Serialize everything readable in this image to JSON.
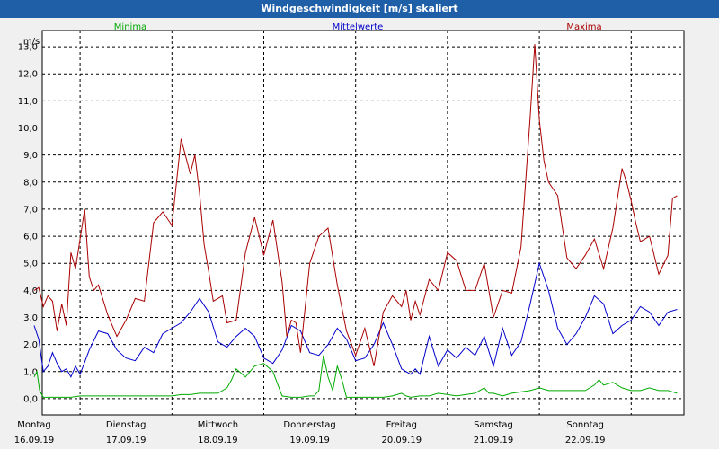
{
  "window": {
    "title": "Windgeschwindigkeit [m/s] skaliert"
  },
  "chart_data": {
    "type": "line",
    "title": "Windgeschwindigkeit [m/s] skaliert",
    "ylabel": "m/s",
    "xlabel": "",
    "ylim": [
      -0.6,
      13.6
    ],
    "xlim": [
      0,
      7
    ],
    "grid": true,
    "y_ticks": [
      "0,0",
      "1,0",
      "2,0",
      "3,0",
      "4,0",
      "5,0",
      "6,0",
      "7,0",
      "8,0",
      "9,0",
      "10,0",
      "11,0",
      "12,0",
      "13,0"
    ],
    "x_ticks": [
      {
        "day": "Montag",
        "date": "16.09.19"
      },
      {
        "day": "Dienstag",
        "date": "17.09.19"
      },
      {
        "day": "Mittwoch",
        "date": "18.09.19"
      },
      {
        "day": "Donnerstag",
        "date": "19.09.19"
      },
      {
        "day": "Freitag",
        "date": "20.09.19"
      },
      {
        "day": "Samstag",
        "date": "21.09.19"
      },
      {
        "day": "Sonntag",
        "date": "22.09.19"
      }
    ],
    "series": [
      {
        "name": "Minima",
        "color": "#00aa00",
        "x": [
          0,
          0.03,
          0.06,
          0.1,
          0.2,
          0.4,
          0.5,
          0.6,
          0.8,
          1.0,
          1.2,
          1.4,
          1.5,
          1.6,
          1.7,
          1.8,
          1.9,
          2.0,
          2.1,
          2.15,
          2.2,
          2.3,
          2.4,
          2.5,
          2.6,
          2.7,
          2.8,
          2.9,
          3.0,
          3.05,
          3.1,
          3.15,
          3.2,
          3.25,
          3.3,
          3.35,
          3.4,
          3.5,
          3.6,
          3.8,
          3.9,
          4.0,
          4.05,
          4.1,
          4.2,
          4.3,
          4.4,
          4.6,
          4.8,
          4.9,
          4.95,
          5.0,
          5.1,
          5.2,
          5.4,
          5.5,
          5.6,
          5.8,
          6.0,
          6.1,
          6.15,
          6.2,
          6.3,
          6.4,
          6.5,
          6.6,
          6.7,
          6.8,
          6.9,
          7.0
        ],
        "values": [
          0.8,
          1.0,
          0.3,
          0.05,
          0.05,
          0.05,
          0.1,
          0.1,
          0.1,
          0.1,
          0.1,
          0.1,
          0.1,
          0.15,
          0.15,
          0.2,
          0.2,
          0.2,
          0.4,
          0.7,
          1.1,
          0.8,
          1.2,
          1.3,
          1.0,
          0.1,
          0.05,
          0.05,
          0.1,
          0.1,
          0.3,
          1.6,
          0.8,
          0.3,
          1.2,
          0.7,
          0.05,
          0.05,
          0.05,
          0.05,
          0.1,
          0.2,
          0.1,
          0.05,
          0.1,
          0.1,
          0.2,
          0.1,
          0.2,
          0.4,
          0.2,
          0.2,
          0.1,
          0.2,
          0.3,
          0.4,
          0.3,
          0.3,
          0.3,
          0.5,
          0.7,
          0.5,
          0.6,
          0.4,
          0.3,
          0.3,
          0.4,
          0.3,
          0.3,
          0.2
        ]
      },
      {
        "name": "Mittelwerte",
        "color": "#0000cc",
        "x": [
          0,
          0.05,
          0.1,
          0.15,
          0.2,
          0.25,
          0.3,
          0.35,
          0.4,
          0.45,
          0.5,
          0.6,
          0.7,
          0.8,
          0.9,
          1.0,
          1.1,
          1.2,
          1.3,
          1.4,
          1.5,
          1.6,
          1.7,
          1.8,
          1.9,
          2.0,
          2.1,
          2.2,
          2.3,
          2.4,
          2.5,
          2.6,
          2.7,
          2.8,
          2.9,
          3.0,
          3.1,
          3.2,
          3.3,
          3.4,
          3.5,
          3.6,
          3.7,
          3.8,
          3.9,
          4.0,
          4.05,
          4.1,
          4.15,
          4.2,
          4.3,
          4.4,
          4.5,
          4.6,
          4.7,
          4.8,
          4.9,
          5.0,
          5.1,
          5.2,
          5.3,
          5.4,
          5.5,
          5.6,
          5.7,
          5.8,
          5.9,
          6.0,
          6.1,
          6.2,
          6.3,
          6.4,
          6.5,
          6.6,
          6.7,
          6.8,
          6.9,
          7.0
        ],
        "values": [
          2.7,
          2.2,
          1.0,
          1.2,
          1.7,
          1.3,
          1.0,
          1.1,
          0.8,
          1.2,
          0.9,
          1.8,
          2.5,
          2.4,
          1.8,
          1.5,
          1.4,
          1.9,
          1.7,
          2.4,
          2.6,
          2.8,
          3.2,
          3.7,
          3.2,
          2.1,
          1.9,
          2.3,
          2.6,
          2.3,
          1.5,
          1.3,
          1.8,
          2.7,
          2.5,
          1.7,
          1.6,
          2.0,
          2.6,
          2.2,
          1.4,
          1.5,
          2.0,
          2.8,
          2.0,
          1.1,
          1.0,
          0.9,
          1.1,
          0.9,
          2.3,
          1.2,
          1.8,
          1.5,
          1.9,
          1.6,
          2.3,
          1.2,
          2.6,
          1.6,
          2.1,
          3.5,
          5.0,
          4.0,
          2.6,
          2.0,
          2.4,
          3.0,
          3.8,
          3.5,
          2.4,
          2.7,
          2.9,
          3.4,
          3.2,
          2.7,
          3.2,
          3.3
        ]
      },
      {
        "name": "Maxima",
        "color": "#aa0000",
        "x": [
          0,
          0.05,
          0.1,
          0.15,
          0.2,
          0.25,
          0.3,
          0.35,
          0.4,
          0.45,
          0.5,
          0.55,
          0.6,
          0.65,
          0.7,
          0.8,
          0.9,
          1.0,
          1.1,
          1.2,
          1.3,
          1.4,
          1.5,
          1.6,
          1.7,
          1.75,
          1.8,
          1.85,
          1.9,
          1.95,
          2.0,
          2.05,
          2.1,
          2.2,
          2.3,
          2.4,
          2.5,
          2.6,
          2.7,
          2.75,
          2.8,
          2.85,
          2.9,
          3.0,
          3.1,
          3.2,
          3.3,
          3.4,
          3.5,
          3.6,
          3.7,
          3.8,
          3.9,
          4.0,
          4.05,
          4.1,
          4.15,
          4.2,
          4.3,
          4.4,
          4.5,
          4.6,
          4.7,
          4.8,
          4.9,
          5.0,
          5.1,
          5.2,
          5.3,
          5.4,
          5.45,
          5.5,
          5.55,
          5.6,
          5.7,
          5.8,
          5.9,
          6.0,
          6.1,
          6.2,
          6.3,
          6.4,
          6.45,
          6.5,
          6.55,
          6.6,
          6.7,
          6.8,
          6.9,
          6.95,
          7.0
        ],
        "values": [
          4.0,
          4.1,
          3.4,
          3.8,
          3.6,
          2.5,
          3.5,
          2.7,
          5.4,
          4.8,
          5.9,
          7.0,
          4.5,
          4.0,
          4.2,
          3.1,
          2.3,
          2.9,
          3.7,
          3.6,
          6.5,
          6.9,
          6.4,
          9.6,
          8.3,
          9.0,
          7.6,
          5.7,
          4.7,
          3.6,
          3.7,
          3.8,
          2.8,
          2.9,
          5.4,
          6.7,
          5.3,
          6.6,
          4.3,
          2.3,
          2.9,
          2.8,
          1.7,
          5.0,
          6.0,
          6.3,
          4.2,
          2.5,
          1.6,
          2.6,
          1.2,
          3.2,
          3.8,
          3.4,
          4.0,
          2.9,
          3.6,
          3.1,
          4.4,
          4.0,
          5.4,
          5.1,
          4.0,
          4.0,
          5.0,
          3.0,
          4.0,
          3.9,
          5.6,
          10.4,
          13.1,
          10.3,
          8.8,
          8.0,
          7.5,
          5.2,
          4.8,
          5.3,
          5.9,
          4.8,
          6.3,
          8.5,
          8.0,
          7.3,
          6.5,
          5.8,
          6.0,
          4.6,
          5.3,
          7.4,
          7.5
        ]
      }
    ]
  }
}
